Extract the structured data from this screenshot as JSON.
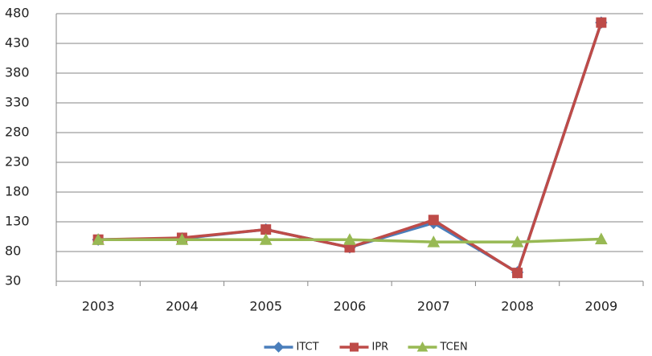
{
  "chart_data": {
    "type": "line",
    "categories": [
      "2003",
      "2004",
      "2005",
      "2006",
      "2007",
      "2008",
      "2009"
    ],
    "series": [
      {
        "name": "ITCT",
        "color": "#4a7ebb",
        "marker": "diamond",
        "values": [
          100,
          102,
          117,
          87,
          128,
          45,
          465
        ]
      },
      {
        "name": "IPR",
        "color": "#be4b48",
        "marker": "square",
        "values": [
          100,
          103,
          117,
          87,
          133,
          44,
          465
        ]
      },
      {
        "name": "TCEN",
        "color": "#98b954",
        "marker": "triangle",
        "values": [
          100,
          100,
          100,
          100,
          96,
          96,
          101
        ]
      }
    ],
    "ylim": [
      30,
      480
    ],
    "yticks": [
      30,
      80,
      130,
      180,
      230,
      280,
      330,
      380,
      430,
      480
    ],
    "grid": true,
    "legend": "bottom"
  }
}
